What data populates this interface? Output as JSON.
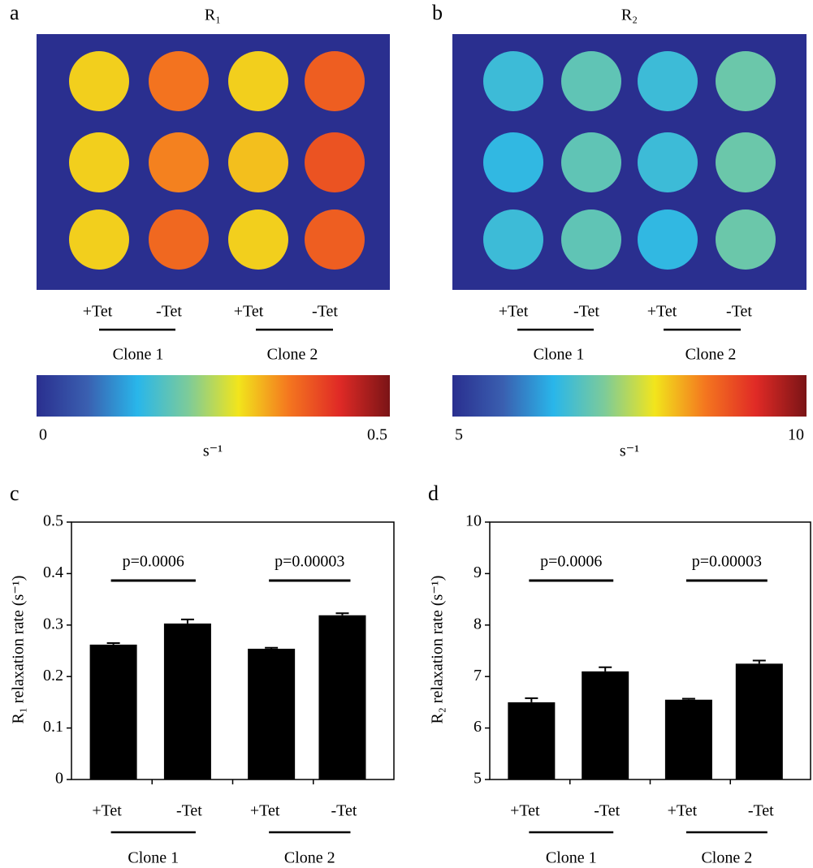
{
  "chart_data": [
    {
      "type": "image",
      "panel": "a",
      "title": "R₁",
      "values": [
        [
          0.3,
          0.36,
          0.3,
          0.38
        ],
        [
          0.3,
          0.35,
          0.31,
          0.39
        ],
        [
          0.3,
          0.37,
          0.3,
          0.38
        ]
      ],
      "categories": [
        "+Tet",
        "-Tet",
        "+Tet",
        "-Tet"
      ],
      "groups": [
        "Clone 1",
        "Clone 2"
      ],
      "background": "#2a2f8f",
      "colormap": [
        "#2a2f8f",
        "#3a5fb0",
        "#29b6ea",
        "#7ccb9a",
        "#f2e51c",
        "#f4761f",
        "#e02a26",
        "#7a1416"
      ],
      "colorbar_lim": [
        0,
        0.5
      ],
      "colorbar_ticks": [
        0,
        0.5
      ],
      "colorbar_label": "s⁻¹"
    },
    {
      "type": "image",
      "panel": "b",
      "title": "R₂",
      "values": [
        [
          6.6,
          6.9,
          6.6,
          7.0
        ],
        [
          6.5,
          6.9,
          6.6,
          7.0
        ],
        [
          6.6,
          6.9,
          6.5,
          7.0
        ]
      ],
      "categories": [
        "+Tet",
        "-Tet",
        "+Tet",
        "-Tet"
      ],
      "groups": [
        "Clone 1",
        "Clone 2"
      ],
      "background": "#2a2f8f",
      "colormap": [
        "#2a2f8f",
        "#3a5fb0",
        "#29b6ea",
        "#7ccb9a",
        "#f2e51c",
        "#f4761f",
        "#e02a26",
        "#7a1416"
      ],
      "colorbar_lim": [
        5,
        10
      ],
      "colorbar_ticks": [
        5,
        10
      ],
      "colorbar_label": "s⁻¹"
    },
    {
      "type": "bar",
      "panel": "c",
      "ylabel": "R₁ relaxation rate (s⁻¹)",
      "categories": [
        "+Tet",
        "-Tet",
        "+Tet",
        "-Tet"
      ],
      "groups": [
        "Clone 1",
        "Clone 2"
      ],
      "values": [
        0.262,
        0.303,
        0.254,
        0.319
      ],
      "errors": [
        0.003,
        0.008,
        0.002,
        0.004
      ],
      "color": "#000000",
      "ylim": [
        0,
        0.5
      ],
      "yticks": [
        0,
        0.1,
        0.2,
        0.3,
        0.4,
        0.5
      ],
      "annotations": [
        "p=0.0006",
        "p=0.00003"
      ]
    },
    {
      "type": "bar",
      "panel": "d",
      "ylabel": "R₂ relaxation rate (s⁻¹)",
      "categories": [
        "+Tet",
        "-Tet",
        "+Tet",
        "-Tet"
      ],
      "groups": [
        "Clone 1",
        "Clone 2"
      ],
      "values": [
        6.5,
        7.1,
        6.55,
        7.25
      ],
      "errors": [
        0.08,
        0.08,
        0.02,
        0.06
      ],
      "color": "#000000",
      "ylim": [
        5,
        10
      ],
      "yticks": [
        5,
        6,
        7,
        8,
        9,
        10
      ],
      "annotations": [
        "p=0.0006",
        "p=0.00003"
      ]
    }
  ]
}
